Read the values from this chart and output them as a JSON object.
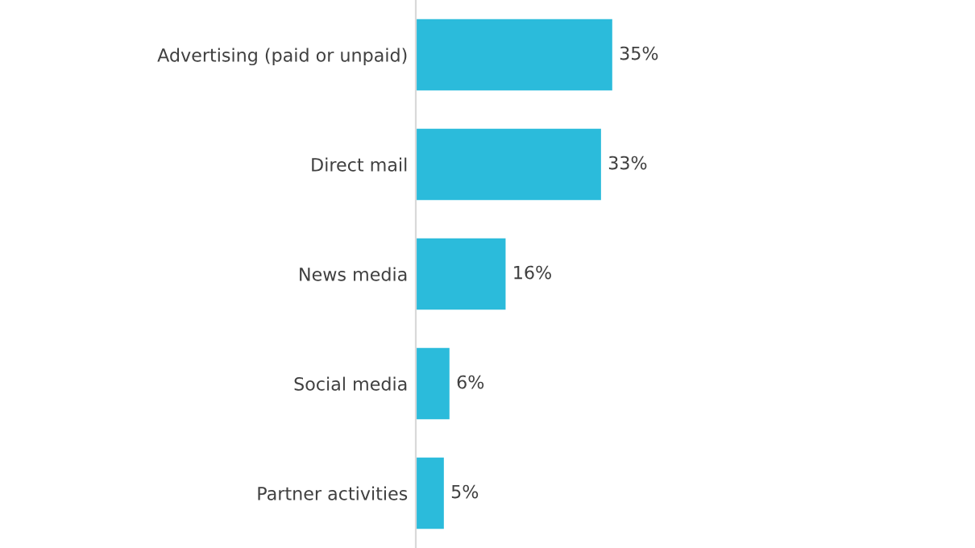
{
  "chart_data": {
    "type": "bar",
    "orientation": "horizontal",
    "categories": [
      "Advertising (paid or unpaid)",
      "Direct mail",
      "News media",
      "Social media",
      "Partner activities"
    ],
    "values": [
      35,
      33,
      16,
      6,
      5
    ],
    "color": "#2bbbdb",
    "value_labels": [
      "35%",
      "33%",
      "16%",
      "6%",
      "5%"
    ],
    "tick_labels": "y",
    "grid": false,
    "legend": false
  }
}
